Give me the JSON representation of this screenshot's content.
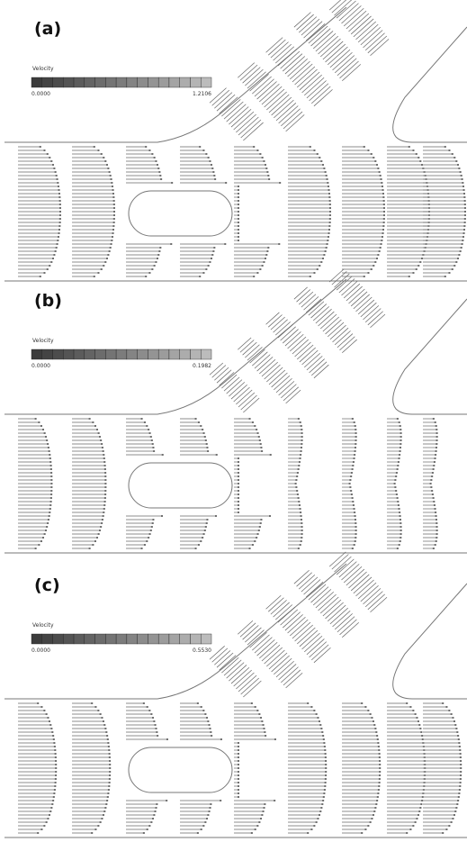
{
  "panels": [
    {
      "label": "(a)",
      "legend": {
        "title": "Velocity",
        "min": "0.0000",
        "max": "1.2106"
      }
    },
    {
      "label": "(b)",
      "legend": {
        "title": "Velocity",
        "min": "0.0000",
        "max": "0.1982"
      }
    },
    {
      "label": "(c)",
      "legend": {
        "title": "Velocity",
        "min": "0.0000",
        "max": "0.5530"
      }
    }
  ]
}
